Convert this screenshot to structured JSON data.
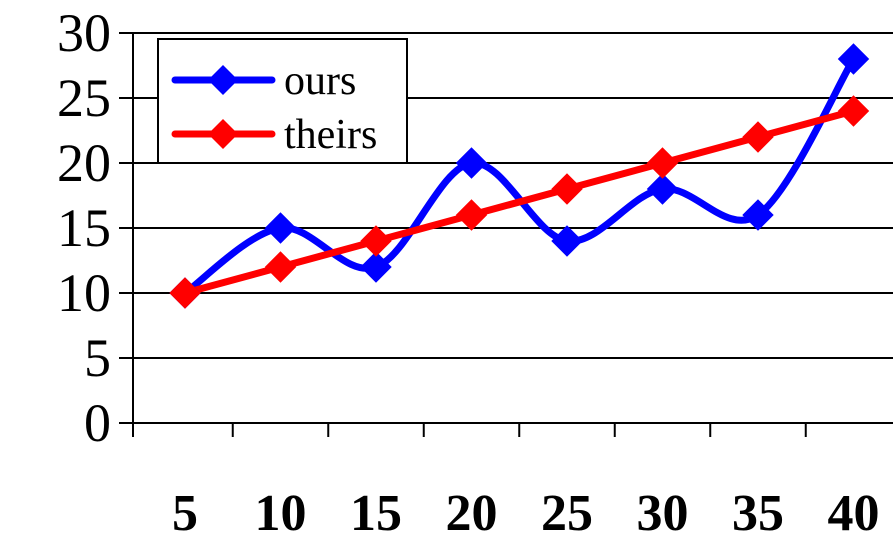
{
  "chart_data": {
    "type": "line",
    "x": [
      5,
      10,
      15,
      20,
      25,
      30,
      35,
      40
    ],
    "x_tick_labels": [
      "5",
      "10",
      "15",
      "20",
      "25",
      "30",
      "35",
      "40"
    ],
    "y_tick_labels": [
      "0",
      "5",
      "10",
      "15",
      "20",
      "25",
      "30"
    ],
    "ylim": [
      0,
      30
    ],
    "grid": "horizontal",
    "legend_position": "top-left",
    "series": [
      {
        "name": "ours",
        "color": "#0000ff",
        "marker": "diamond",
        "smooth": true,
        "values": [
          10,
          15,
          12,
          20,
          14,
          18,
          16,
          28
        ]
      },
      {
        "name": "theirs",
        "color": "#ff0000",
        "marker": "diamond",
        "smooth": false,
        "values": [
          10,
          12,
          14,
          16,
          18,
          20,
          22,
          24
        ]
      }
    ]
  }
}
